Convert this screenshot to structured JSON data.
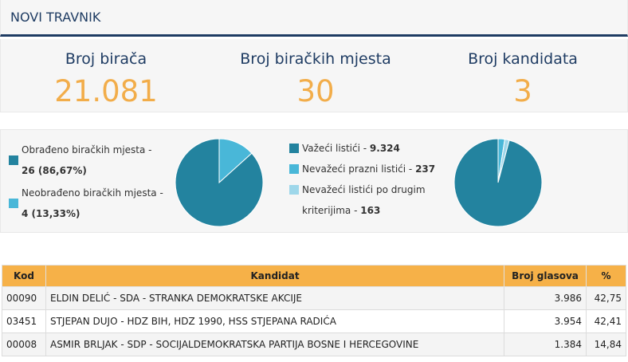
{
  "header": {
    "title": "NOVI TRAVNIK"
  },
  "stats": [
    {
      "label": "Broj birača",
      "value": "21.081"
    },
    {
      "label": "Broj biračkih mjesta",
      "value": "30"
    },
    {
      "label": "Broj kandidata",
      "value": "3"
    }
  ],
  "colors": {
    "dark_teal": "#23839f",
    "light_blue": "#49b7d8",
    "pale_blue": "#9ed7ea",
    "accent_orange": "#f2ad4a",
    "header_navy": "#1f3c63"
  },
  "polling_legend": [
    {
      "text": "Obrađeno biračkih mjesta -",
      "value": "26 (86,67%)"
    },
    {
      "text": "Neobrađeno biračkih mjesta -",
      "value": "4 (13,33%)"
    }
  ],
  "ballots_legend": [
    {
      "text": "Važeći listići -",
      "value": "9.324"
    },
    {
      "text": "Nevažeći prazni listići -",
      "value": "237"
    },
    {
      "text": "Nevažeći listići po drugim kriterijima -",
      "value": "163"
    }
  ],
  "chart_data": [
    {
      "type": "pie",
      "labels": [
        "Obrađeno biračkih mjesta",
        "Neobrađeno biračkih mjesta"
      ],
      "values": [
        26,
        4
      ]
    },
    {
      "type": "pie",
      "labels": [
        "Važeći listići",
        "Nevažeći prazni listići",
        "Nevažeći listići po drugim kriterijima"
      ],
      "values": [
        9324,
        237,
        163
      ]
    }
  ],
  "table": {
    "headers": [
      "Kod",
      "Kandidat",
      "Broj glasova",
      "%"
    ],
    "rows": [
      [
        "00090",
        "ELDIN DELIĆ - SDA - STRANKA DEMOKRATSKE AKCIJE",
        "3.986",
        "42,75"
      ],
      [
        "03451",
        "STJEPAN DUJO - HDZ BIH, HDZ 1990, HSS STJEPANA RADIĆA",
        "3.954",
        "42,41"
      ],
      [
        "00008",
        "ASMIR BRLJAK - SDP - SOCIJALDEMOKRATSKA PARTIJA BOSNE I HERCEGOVINE",
        "1.384",
        "14,84"
      ]
    ]
  }
}
